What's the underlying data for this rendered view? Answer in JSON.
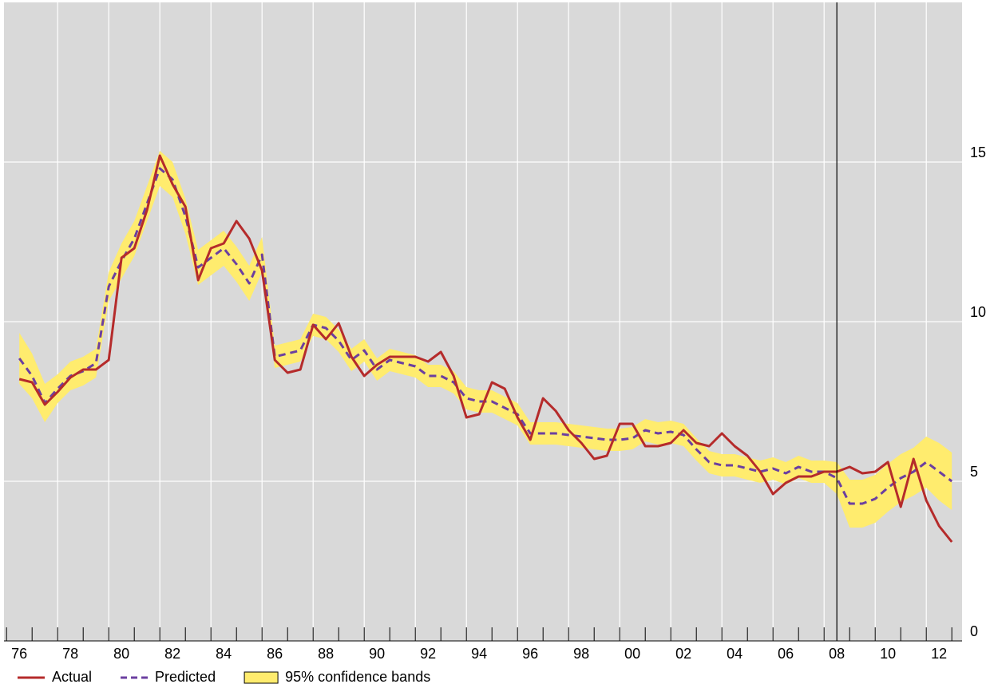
{
  "chart_data": {
    "type": "line",
    "x": [
      1976.5,
      1977,
      1977.5,
      1978,
      1978.5,
      1979,
      1979.5,
      1980,
      1980.5,
      1981,
      1981.5,
      1982,
      1982.5,
      1983,
      1983.5,
      1984,
      1984.5,
      1985,
      1985.5,
      1986,
      1986.5,
      1987,
      1987.5,
      1988,
      1988.5,
      1989,
      1989.5,
      1990,
      1990.5,
      1991,
      1991.5,
      1992,
      1992.5,
      1993,
      1993.5,
      1994,
      1994.5,
      1995,
      1995.5,
      1996,
      1996.5,
      1997,
      1997.5,
      1998,
      1998.5,
      1999,
      1999.5,
      2000,
      2000.5,
      2001,
      2001.5,
      2002,
      2002.5,
      2003,
      2003.5,
      2004,
      2004.5,
      2005,
      2005.5,
      2006,
      2006.5,
      2007,
      2007.5,
      2008,
      2008.5,
      2009,
      2009.5,
      2010,
      2010.5,
      2011,
      2011.5,
      2012,
      2012.5,
      2013
    ],
    "series": [
      {
        "name": "Actual",
        "color": "#b52b2b",
        "dashed": false,
        "values": [
          8.2,
          8.1,
          7.4,
          7.8,
          8.25,
          8.5,
          8.5,
          8.8,
          12.0,
          12.3,
          13.5,
          15.2,
          14.3,
          13.6,
          11.3,
          12.3,
          12.45,
          13.15,
          12.6,
          11.6,
          8.8,
          8.4,
          8.5,
          9.9,
          9.45,
          9.95,
          8.9,
          8.3,
          8.65,
          8.9,
          8.9,
          8.9,
          8.75,
          9.05,
          8.3,
          7.0,
          7.1,
          8.1,
          7.9,
          7.0,
          6.3,
          7.6,
          7.2,
          6.6,
          6.2,
          5.7,
          5.8,
          6.8,
          6.8,
          6.1,
          6.1,
          6.2,
          6.6,
          6.2,
          6.1,
          6.5,
          6.1,
          5.8,
          5.3,
          4.6,
          4.95,
          5.15,
          5.15,
          5.3,
          5.3,
          5.45,
          5.25,
          5.3,
          5.6,
          4.2,
          5.7,
          4.4,
          3.6,
          3.1
        ]
      },
      {
        "name": "Predicted",
        "color": "#6b3fa0",
        "dashed": true,
        "values": [
          8.85,
          8.3,
          7.45,
          7.9,
          8.3,
          8.45,
          8.7,
          11.1,
          11.9,
          12.6,
          13.7,
          14.8,
          14.45,
          13.3,
          11.7,
          12.0,
          12.3,
          11.8,
          11.2,
          12.1,
          8.9,
          9.0,
          9.1,
          9.9,
          9.8,
          9.4,
          8.8,
          9.1,
          8.5,
          8.8,
          8.7,
          8.6,
          8.3,
          8.3,
          8.1,
          7.6,
          7.5,
          7.5,
          7.3,
          7.1,
          6.5,
          6.5,
          6.5,
          6.45,
          6.4,
          6.35,
          6.3,
          6.3,
          6.35,
          6.6,
          6.5,
          6.55,
          6.45,
          6.0,
          5.6,
          5.5,
          5.5,
          5.4,
          5.3,
          5.4,
          5.25,
          5.45,
          5.3,
          5.3,
          5.1,
          4.3,
          4.3,
          4.45,
          4.8,
          5.1,
          5.3,
          5.6,
          5.3,
          5.0
        ]
      }
    ],
    "band": {
      "name": "95% confidence bands",
      "color": "#ffec6e",
      "lower": [
        8.05,
        7.6,
        6.85,
        7.45,
        7.85,
        8.0,
        8.25,
        10.65,
        11.35,
        12.05,
        13.15,
        14.25,
        13.9,
        12.75,
        11.15,
        11.45,
        11.75,
        11.25,
        10.65,
        11.55,
        8.55,
        8.65,
        8.75,
        9.55,
        9.45,
        9.05,
        8.45,
        8.75,
        8.15,
        8.45,
        8.35,
        8.25,
        7.95,
        7.95,
        7.75,
        7.25,
        7.15,
        7.15,
        6.95,
        6.75,
        6.15,
        6.15,
        6.15,
        6.1,
        6.05,
        6.0,
        5.95,
        5.95,
        6.0,
        6.25,
        6.15,
        6.2,
        6.1,
        5.65,
        5.25,
        5.15,
        5.15,
        5.05,
        4.95,
        5.05,
        4.9,
        5.1,
        4.95,
        4.95,
        4.6,
        3.55,
        3.55,
        3.7,
        4.05,
        4.35,
        4.55,
        4.8,
        4.4,
        4.1
      ],
      "upper": [
        9.65,
        9.0,
        8.05,
        8.35,
        8.75,
        8.9,
        9.15,
        11.55,
        12.45,
        13.15,
        14.25,
        15.35,
        15.0,
        13.85,
        12.25,
        12.55,
        12.85,
        12.35,
        11.75,
        12.65,
        9.25,
        9.35,
        9.45,
        10.25,
        10.15,
        9.75,
        9.15,
        9.45,
        8.85,
        9.15,
        9.05,
        8.95,
        8.65,
        8.65,
        8.45,
        7.95,
        7.85,
        7.85,
        7.65,
        7.45,
        6.85,
        6.85,
        6.85,
        6.8,
        6.75,
        6.7,
        6.65,
        6.65,
        6.7,
        6.95,
        6.85,
        6.9,
        6.8,
        6.35,
        5.95,
        5.85,
        5.85,
        5.75,
        5.65,
        5.75,
        5.6,
        5.8,
        5.65,
        5.65,
        5.6,
        5.05,
        5.05,
        5.2,
        5.55,
        5.85,
        6.05,
        6.4,
        6.2,
        5.9
      ]
    },
    "xlim": [
      1975.9,
      2013.4
    ],
    "ylim": [
      0,
      20
    ],
    "yticks": [
      0,
      5,
      10,
      15
    ],
    "xticks": [
      {
        "value": 1976.5,
        "label": "76"
      },
      {
        "value": 1978.5,
        "label": "78"
      },
      {
        "value": 1980.5,
        "label": "80"
      },
      {
        "value": 1982.5,
        "label": "82"
      },
      {
        "value": 1984.5,
        "label": "84"
      },
      {
        "value": 1986.5,
        "label": "86"
      },
      {
        "value": 1988.5,
        "label": "88"
      },
      {
        "value": 1990.5,
        "label": "90"
      },
      {
        "value": 1992.5,
        "label": "92"
      },
      {
        "value": 1994.5,
        "label": "94"
      },
      {
        "value": 1996.5,
        "label": "96"
      },
      {
        "value": 1998.5,
        "label": "98"
      },
      {
        "value": 2000.5,
        "label": "00"
      },
      {
        "value": 2002.5,
        "label": "02"
      },
      {
        "value": 2004.5,
        "label": "04"
      },
      {
        "value": 2006.5,
        "label": "06"
      },
      {
        "value": 2008.5,
        "label": "08"
      },
      {
        "value": 2010.5,
        "label": "10"
      },
      {
        "value": 2012.5,
        "label": "12"
      }
    ],
    "xgrid": [
      1978,
      1980,
      1982,
      1984,
      1986,
      1988,
      1990,
      1992,
      1994,
      1996,
      1998,
      2000,
      2002,
      2004,
      2006,
      2008,
      2010,
      2012
    ],
    "xminorticks": [
      1976,
      1977,
      1978,
      1979,
      1980,
      1981,
      1982,
      1983,
      1984,
      1985,
      1986,
      1987,
      1988,
      1989,
      1990,
      1991,
      1992,
      1993,
      1994,
      1995,
      1996,
      1997,
      1998,
      1999,
      2000,
      2001,
      2002,
      2003,
      2004,
      2005,
      2006,
      2007,
      2008,
      2009,
      2010,
      2011,
      2012,
      2013
    ],
    "vline": 2008.5,
    "grid": true,
    "background": "#d9d9d9"
  }
}
